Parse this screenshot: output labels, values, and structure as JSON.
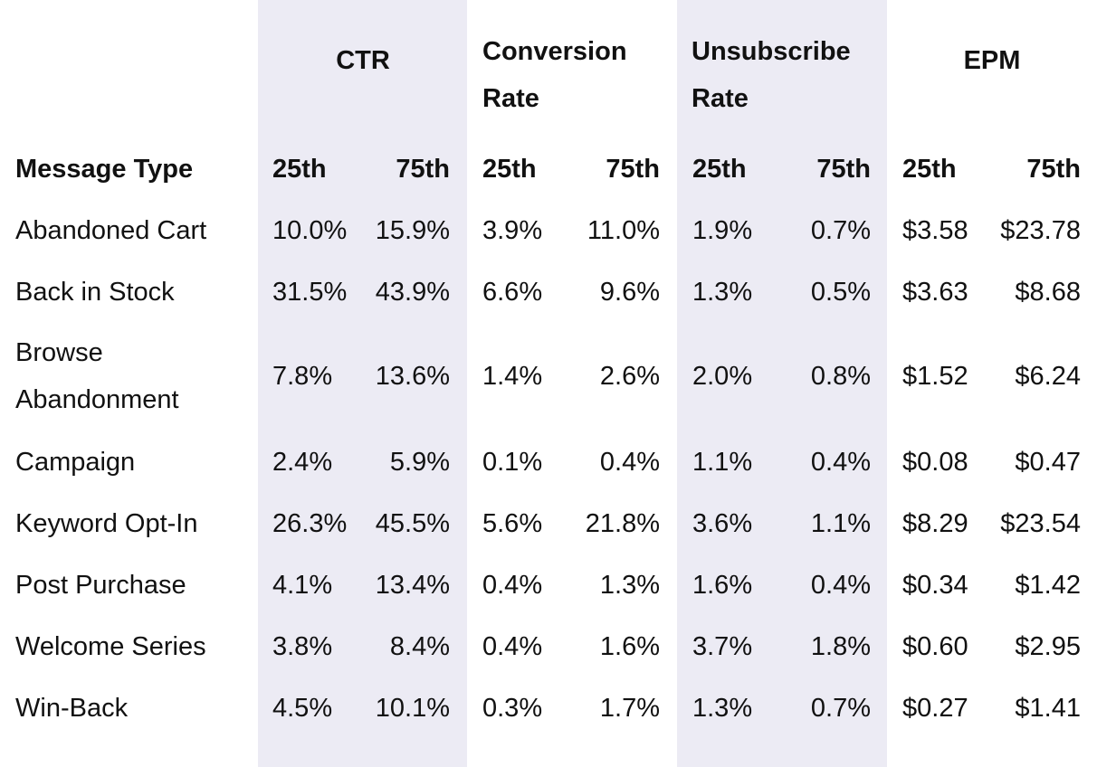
{
  "header": {
    "groups": [
      "CTR",
      "Conversion Rate",
      "Unsubscribe Rate",
      "EPM"
    ],
    "subheaders": [
      "Message Type",
      "25th",
      "75th",
      "25th",
      "75th",
      "25th",
      "75th",
      "25th",
      "75th"
    ]
  },
  "table": {
    "rows": [
      [
        "Abandoned Cart",
        "10.0%",
        "15.9%",
        "3.9%",
        "11.0%",
        "1.9%",
        "0.7%",
        "$3.58",
        "$23.78"
      ],
      [
        "Back in Stock",
        "31.5%",
        "43.9%",
        "6.6%",
        "9.6%",
        "1.3%",
        "0.5%",
        "$3.63",
        "$8.68"
      ],
      [
        "Browse Abandonment",
        "7.8%",
        "13.6%",
        "1.4%",
        "2.6%",
        "2.0%",
        "0.8%",
        "$1.52",
        "$6.24"
      ],
      [
        "Campaign",
        "2.4%",
        "5.9%",
        "0.1%",
        "0.4%",
        "1.1%",
        "0.4%",
        "$0.08",
        "$0.47"
      ],
      [
        "Keyword Opt-In",
        "26.3%",
        "45.5%",
        "5.6%",
        "21.8%",
        "3.6%",
        "1.1%",
        "$8.29",
        "$23.54"
      ],
      [
        "Post Purchase",
        "4.1%",
        "13.4%",
        "0.4%",
        "1.3%",
        "1.6%",
        "0.4%",
        "$0.34",
        "$1.42"
      ],
      [
        "Welcome Series",
        "3.8%",
        "8.4%",
        "0.4%",
        "1.6%",
        "3.7%",
        "1.8%",
        "$0.60",
        "$2.95"
      ],
      [
        "Win-Back",
        "4.5%",
        "10.1%",
        "0.3%",
        "1.7%",
        "1.3%",
        "0.7%",
        "$0.27",
        "$1.41"
      ]
    ]
  }
}
